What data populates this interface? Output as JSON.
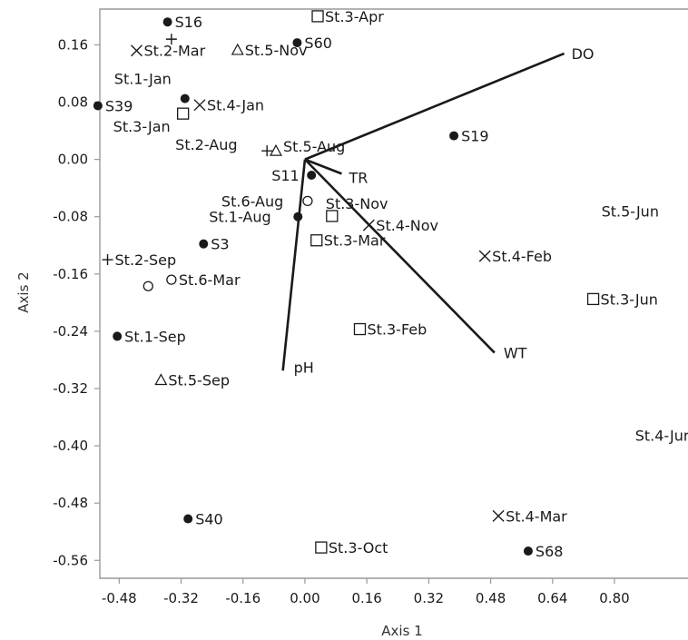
{
  "chart_data": {
    "type": "scatter",
    "title": "",
    "xlabel": "Axis 1",
    "ylabel": "Axis 2",
    "xlim": [
      -0.53,
      0.99
    ],
    "ylim": [
      -0.585,
      0.21
    ],
    "grid": false,
    "x_ticks": [
      "-0.48",
      "-0.32",
      "-0.16",
      "0.00",
      "0.16",
      "0.32",
      "0.48",
      "0.64",
      "0.80"
    ],
    "y_ticks": [
      "0.16",
      "0.08",
      "0.00",
      "-0.08",
      "-0.16",
      "-0.24",
      "-0.32",
      "-0.40",
      "-0.48",
      "-0.56"
    ],
    "vectors": [
      {
        "label": "DO",
        "x": 0.67,
        "y": 0.148
      },
      {
        "label": "TR",
        "x": 0.095,
        "y": -0.02
      },
      {
        "label": "WT",
        "x": 0.49,
        "y": -0.27
      },
      {
        "label": "pH",
        "x": -0.057,
        "y": -0.295
      }
    ],
    "points": [
      {
        "label": "S16",
        "marker": "dot",
        "x": -0.355,
        "y": 0.192
      },
      {
        "label": "S60",
        "marker": "dot",
        "x": -0.02,
        "y": 0.163
      },
      {
        "label": "S39",
        "marker": "dot",
        "x": -0.535,
        "y": 0.075
      },
      {
        "label": "St.1-Jan",
        "marker": "dot",
        "x": -0.31,
        "y": 0.085
      },
      {
        "label": "S19",
        "marker": "dot",
        "x": 0.385,
        "y": 0.033
      },
      {
        "label": "S11",
        "marker": "dot",
        "x": 0.017,
        "y": -0.022
      },
      {
        "label": "St.1-Aug",
        "marker": "dot",
        "x": -0.018,
        "y": -0.08
      },
      {
        "label": "S3",
        "marker": "dot",
        "x": -0.262,
        "y": -0.118
      },
      {
        "label": "St.1-Sep",
        "marker": "dot",
        "x": -0.485,
        "y": -0.247
      },
      {
        "label": "S40",
        "marker": "dot",
        "x": -0.302,
        "y": -0.502
      },
      {
        "label": "S68",
        "marker": "dot",
        "x": 0.577,
        "y": -0.547
      },
      {
        "label": "St.3-Apr",
        "marker": "square",
        "x": 0.033,
        "y": 0.2
      },
      {
        "label": "St.3-Jan",
        "marker": "square",
        "x": -0.315,
        "y": 0.064
      },
      {
        "label": "St.3-Nov",
        "marker": "square",
        "x": 0.07,
        "y": -0.079
      },
      {
        "label": "St.3-Mar",
        "marker": "square",
        "x": 0.03,
        "y": -0.113
      },
      {
        "label": "St.3-Feb",
        "marker": "square",
        "x": 0.142,
        "y": -0.237
      },
      {
        "label": "St.3-Jun",
        "marker": "square",
        "x": 0.745,
        "y": -0.195
      },
      {
        "label": "St.3-Oct",
        "marker": "square",
        "x": 0.042,
        "y": -0.542
      },
      {
        "label": "St.5-Jun",
        "marker": "none",
        "x": 0.785,
        "y": -0.072
      },
      {
        "label": "St.4-Jun",
        "marker": "none",
        "x": 0.872,
        "y": -0.385
      },
      {
        "label": "St.2-Mar",
        "marker": "cross",
        "x": -0.435,
        "y": 0.152
      },
      {
        "label": "St.4-Jan",
        "marker": "cross",
        "x": -0.272,
        "y": 0.076
      },
      {
        "label": "St.4-Nov",
        "marker": "cross",
        "x": 0.165,
        "y": -0.092
      },
      {
        "label": "St.4-Feb",
        "marker": "cross",
        "x": 0.465,
        "y": -0.135
      },
      {
        "label": "St.4-Mar",
        "marker": "cross",
        "x": 0.5,
        "y": -0.498
      },
      {
        "label": "St.2-Aug",
        "marker": "plus",
        "x": -0.098,
        "y": 0.012
      },
      {
        "label": "St.2-Sep",
        "marker": "plus",
        "x": -0.51,
        "y": -0.14
      },
      {
        "label": "",
        "marker": "plus",
        "x": -0.345,
        "y": 0.168
      },
      {
        "label": "St.5-Nov",
        "marker": "triangle",
        "x": -0.174,
        "y": 0.153
      },
      {
        "label": "St.5-Aug",
        "marker": "triangle",
        "x": -0.075,
        "y": 0.012
      },
      {
        "label": "St.5-Sep",
        "marker": "triangle",
        "x": -0.372,
        "y": -0.308
      },
      {
        "label": "St.6-Aug",
        "marker": "circle",
        "x": 0.007,
        "y": -0.058
      },
      {
        "label": "St.6-Mar",
        "marker": "circle",
        "x": -0.345,
        "y": -0.168
      },
      {
        "label": "",
        "marker": "circle",
        "x": -0.405,
        "y": -0.177
      }
    ],
    "colors": {
      "marker": "#1a1a1a",
      "vector": "#1a1a1a",
      "frame": "#999999"
    }
  }
}
